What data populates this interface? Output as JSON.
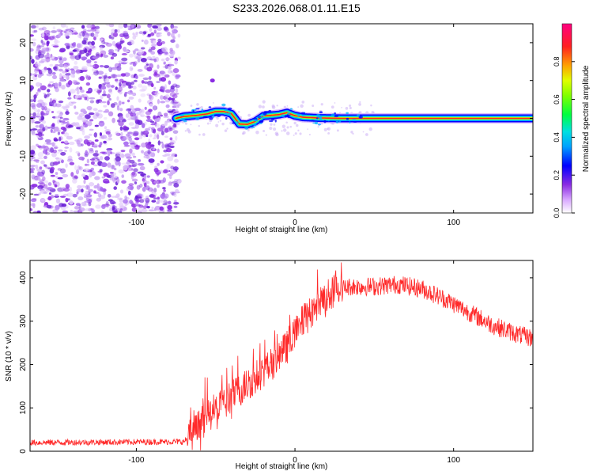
{
  "figure_title": "S233.2026.068.01.11.E15",
  "colors": {
    "scatter_purple": "#8a2be2",
    "snr_line": "#ff2a2a",
    "axis": "#000000"
  },
  "chart_data": [
    {
      "type": "heatmap",
      "title": "S233.2026.068.01.11.E15",
      "xlabel": "Height of straight line (km)",
      "ylabel": "Frequency (Hz)",
      "xlim": [
        -167,
        150
      ],
      "ylim": [
        -25,
        25
      ],
      "x_ticks": [
        -100,
        0,
        100
      ],
      "x_tick_labels": [
        "-100",
        "0",
        "100"
      ],
      "y_ticks": [
        -20,
        -10,
        0,
        10,
        20
      ],
      "y_tick_labels": [
        "-20",
        "-10",
        "0",
        "10",
        "20"
      ],
      "noise_region_x": [
        -167,
        -75
      ],
      "ridge": {
        "x": [
          -75,
          -70,
          -62,
          -55,
          -50,
          -45,
          -40,
          -35,
          -30,
          -25,
          -20,
          -15,
          -10,
          -5,
          0,
          5,
          15,
          30,
          50,
          80,
          100,
          120,
          150
        ],
        "freq": [
          0,
          0.5,
          0.8,
          1.2,
          1.8,
          1.8,
          1.2,
          -1.5,
          -1.6,
          -0.8,
          0.6,
          0.8,
          1.0,
          1.5,
          0.7,
          0.3,
          0.1,
          0,
          0,
          0,
          0,
          0,
          0
        ]
      },
      "colorbar": {
        "label": "Normalized spectral amplitude",
        "range": [
          0,
          1
        ],
        "ticks": [
          0.0,
          0.2,
          0.4,
          0.6,
          0.8
        ],
        "tick_labels": [
          "0.0",
          "0.2",
          "0.4",
          "0.6",
          "0.8"
        ]
      }
    },
    {
      "type": "line",
      "xlabel": "Height of straight line (km)",
      "ylabel": "SNR (10 * v/v)",
      "xlim": [
        -167,
        150
      ],
      "ylim": [
        0,
        440
      ],
      "x_ticks": [
        -100,
        0,
        100
      ],
      "x_tick_labels": [
        "-100",
        "0",
        "100"
      ],
      "y_ticks": [
        0,
        100,
        200,
        300,
        400
      ],
      "y_tick_labels": [
        "0",
        "100",
        "200",
        "300",
        "400"
      ],
      "series": [
        {
          "name": "SNR",
          "envelope_x": [
            -167,
            -70,
            -65,
            -55,
            -45,
            -35,
            -25,
            -15,
            -5,
            5,
            15,
            25,
            35,
            50,
            65,
            80,
            95,
            110,
            125,
            140,
            150
          ],
          "envelope_y": [
            20,
            22,
            40,
            80,
            110,
            140,
            170,
            200,
            240,
            300,
            340,
            370,
            380,
            380,
            385,
            375,
            350,
            320,
            290,
            270,
            260
          ],
          "noise_amplitude": 18
        }
      ]
    }
  ]
}
